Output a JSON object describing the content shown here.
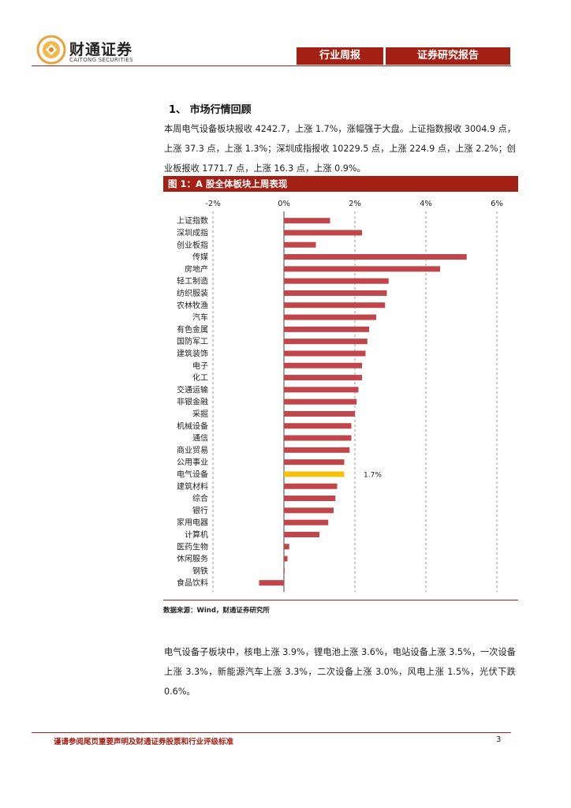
{
  "header": {
    "logo_cn": "财通证券",
    "logo_en": "CAITONG SECURITIES",
    "tab_weekly": "行业周报",
    "tab_report": "证券研究报告"
  },
  "section": {
    "title": "1、 市场行情回顾",
    "para1": "本周电气设备板块报收 4242.7，上涨 1.7%，涨幅强于大盘。上证指数报收 3004.9 点，上涨 37.3 点，上涨 1.3%；深圳成指报收 10229.5 点，上涨 224.9 点，上涨 2.2%；创业板报收 1771.7 点，上涨 16.3 点，上涨 0.9%。",
    "para2": "电气设备子板块中，核电上涨 3.9%，锂电池上涨 3.6%，电站设备上涨 3.5%，一次设备上涨 3.3%，新能源汽车上涨 3.3%，二次设备上涨 3.0%，风电上涨 1.5%，光伏下跌 0.6%。"
  },
  "figure": {
    "title": "图 1：A 股全体板块上周表现",
    "source": "数据来源：Wind，财通证券研究所"
  },
  "chart_data": {
    "type": "bar",
    "orientation": "horizontal",
    "title": "",
    "xlabel": "",
    "ylabel": "",
    "xlim": [
      -2,
      6
    ],
    "xticks": [
      "-2%",
      "0%",
      "2%",
      "4%",
      "6%"
    ],
    "grid": true,
    "categories": [
      "上证指数",
      "深圳成指",
      "创业板指",
      "传媒",
      "房地产",
      "轻工制造",
      "纺织服装",
      "农林牧渔",
      "汽车",
      "有色金属",
      "国防军工",
      "建筑装饰",
      "电子",
      "化工",
      "交通运输",
      "非银金融",
      "采掘",
      "机械设备",
      "通信",
      "商业贸易",
      "公用事业",
      "电气设备",
      "建筑材料",
      "综合",
      "银行",
      "家用电器",
      "计算机",
      "医药生物",
      "休闲服务",
      "钢铁",
      "食品饮料"
    ],
    "values": [
      1.3,
      2.2,
      0.9,
      5.15,
      4.4,
      2.95,
      2.9,
      2.85,
      2.6,
      2.4,
      2.35,
      2.3,
      2.2,
      2.2,
      2.1,
      2.05,
      2.0,
      1.9,
      1.9,
      1.85,
      1.7,
      1.7,
      1.5,
      1.45,
      1.4,
      1.25,
      1.0,
      0.15,
      0.1,
      0.02,
      -0.7
    ],
    "highlight": "电气设备",
    "highlight_label": "1.7%",
    "colors": {
      "bar": "#c0464b",
      "highlight": "#f6c10c",
      "grid": "#808080"
    }
  },
  "footer": {
    "note": "谨请参阅尾页重要声明及财通证券股票和行业评级标准",
    "page": "3"
  }
}
